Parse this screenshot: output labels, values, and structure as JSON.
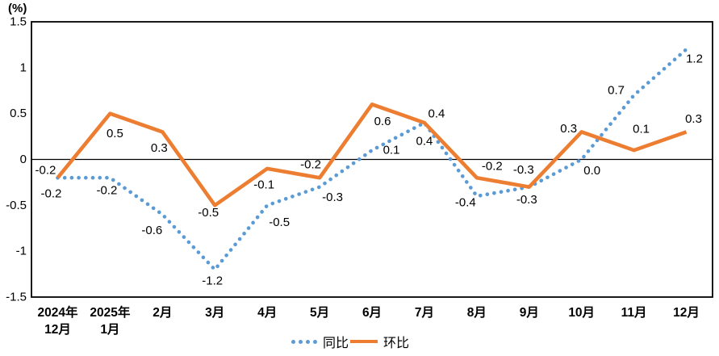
{
  "unit_label": "(%)",
  "legend": {
    "series1_label": "同比",
    "series2_label": "环比"
  },
  "chart_data": {
    "type": "line",
    "categories": [
      "2024年\n12月",
      "2025年\n1月",
      "2月",
      "3月",
      "4月",
      "5月",
      "6月",
      "7月",
      "8月",
      "9月",
      "10月",
      "11月",
      "12月"
    ],
    "series": [
      {
        "name": "同比",
        "style": "dotted",
        "color": "#5B9BD5",
        "values": [
          -0.2,
          -0.2,
          -0.6,
          -1.2,
          -0.5,
          -0.3,
          0.1,
          0.4,
          -0.4,
          -0.3,
          0.0,
          0.7,
          1.2
        ]
      },
      {
        "name": "环比",
        "style": "solid",
        "color": "#ED7D31",
        "values": [
          -0.2,
          0.5,
          0.3,
          -0.5,
          -0.1,
          -0.2,
          0.6,
          0.4,
          -0.2,
          -0.3,
          0.3,
          0.1,
          0.3
        ]
      }
    ],
    "title": "",
    "xlabel": "",
    "ylabel": "(%)",
    "ylim": [
      -1.5,
      1.5
    ],
    "ytick_step": 0.5,
    "yticks": [
      "1.5",
      "1",
      "0.5",
      "0",
      "-0.5",
      "-1",
      "-1.5"
    ],
    "data_labels": true,
    "data_label_decimals": 1,
    "grid": false,
    "zero_line": true,
    "plot_border": true,
    "legend_position": "bottom-center",
    "axis_color": "#000000",
    "background_color": "#FFFFFF"
  }
}
